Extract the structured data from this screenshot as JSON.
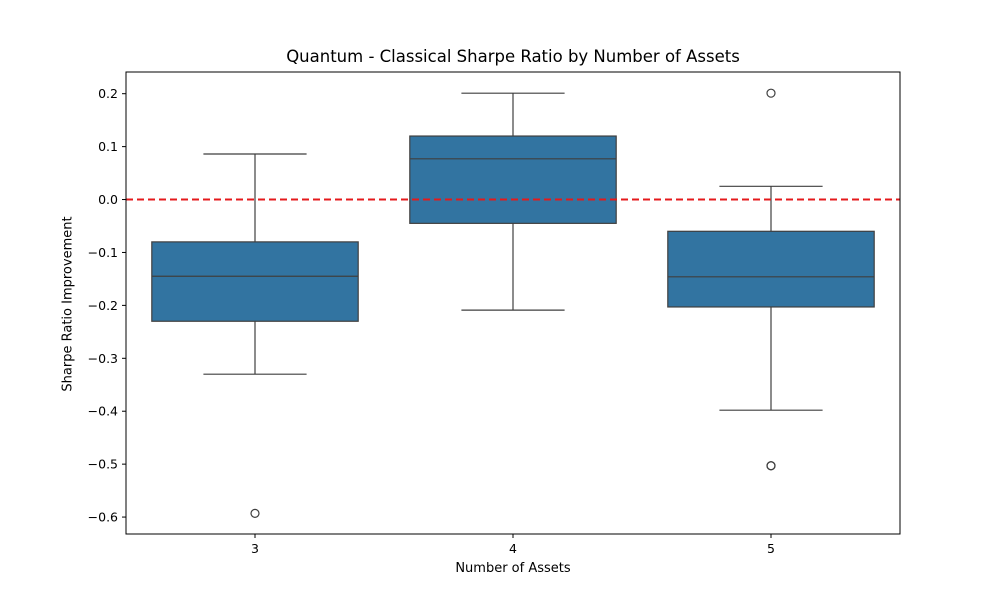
{
  "chart_data": {
    "type": "box",
    "title": "Quantum - Classical Sharpe Ratio by Number of Assets",
    "xlabel": "Number of Assets",
    "ylabel": "Sharpe Ratio Improvement",
    "ylim": [
      -0.632,
      0.241
    ],
    "yticks": [
      0.2,
      0.1,
      0.0,
      -0.1,
      -0.2,
      -0.3,
      -0.4,
      -0.5,
      -0.6
    ],
    "ytick_labels": [
      "0.2",
      "0.1",
      "0.0",
      "−0.1",
      "−0.2",
      "−0.3",
      "−0.4",
      "−0.5",
      "−0.6"
    ],
    "categories": [
      "3",
      "4",
      "5"
    ],
    "boxes": [
      {
        "category": "3",
        "whisker_low": -0.33,
        "q1": -0.23,
        "median": -0.145,
        "q3": -0.08,
        "whisker_high": 0.086,
        "outliers": [
          -0.593
        ]
      },
      {
        "category": "4",
        "whisker_low": -0.209,
        "q1": -0.045,
        "median": 0.077,
        "q3": 0.12,
        "whisker_high": 0.201,
        "outliers": []
      },
      {
        "category": "5",
        "whisker_low": -0.398,
        "q1": -0.203,
        "median": -0.146,
        "q3": -0.06,
        "whisker_high": 0.025,
        "outliers": [
          0.201,
          -0.503,
          -0.503
        ]
      }
    ],
    "reference_line": {
      "y": 0.0,
      "color": "#e41a1c",
      "style": "dashed"
    },
    "box_color": "#3274a1",
    "line_color": "#3f3f3f",
    "grid": false,
    "legend": false
  }
}
